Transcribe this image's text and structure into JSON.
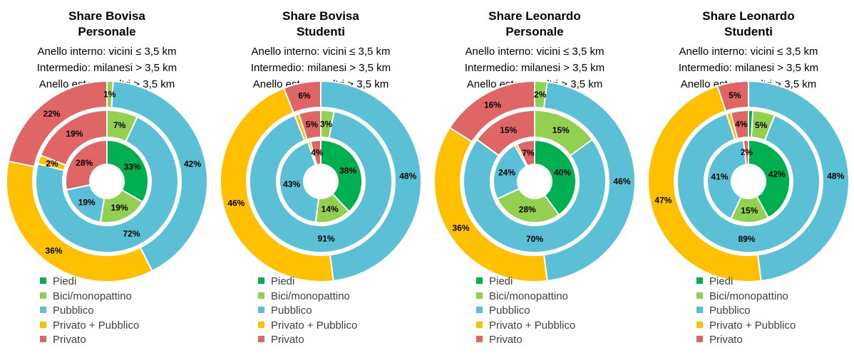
{
  "legend": [
    {
      "label": "Piedi",
      "color": "#00B050"
    },
    {
      "label": "Bici/monopattino",
      "color": "#92D050"
    },
    {
      "label": "Pubblico",
      "color": "#5BC0D5"
    },
    {
      "label": "Privato + Pubblico",
      "color": "#FFC000"
    },
    {
      "label": "Privato",
      "color": "#E06666"
    }
  ],
  "chart_data": [
    {
      "type": "donut",
      "title_line1": "Share Bovisa",
      "title_line2": "Personale",
      "subtitle_lines": [
        "Anello interno: vicini ≤ 3,5 km",
        "Intermedio: milanesi > 3,5 km",
        "Anello esterno: altri > 3,5 km"
      ],
      "categories": [
        "Piedi",
        "Bici/monopattino",
        "Pubblico",
        "Privato + Pubblico",
        "Privato"
      ],
      "series": [
        {
          "values": [
            33,
            19,
            19,
            0,
            28
          ],
          "labels": [
            "33%",
            "19%",
            "19%",
            "",
            "28%"
          ]
        },
        {
          "values": [
            0,
            7,
            72,
            2,
            19
          ],
          "labels": [
            "",
            "7%",
            "72%",
            "2%",
            "19%"
          ]
        },
        {
          "values": [
            0,
            1,
            42,
            36,
            22
          ],
          "labels": [
            "",
            "1%",
            "42%",
            "36%",
            "22%"
          ]
        }
      ]
    },
    {
      "type": "donut",
      "title_line1": "Share Bovisa",
      "title_line2": "Studenti",
      "subtitle_lines": [
        "Anello interno: vicini ≤ 3,5 km",
        "Intermedio: milanesi > 3,5 km",
        "Anello esterno: altri > 3,5 km"
      ],
      "categories": [
        "Piedi",
        "Bici/monopattino",
        "Pubblico",
        "Privato + Pubblico",
        "Privato"
      ],
      "series": [
        {
          "values": [
            38,
            14,
            43,
            1,
            4
          ],
          "labels": [
            "38%",
            "14%",
            "43%",
            "",
            "4%"
          ]
        },
        {
          "values": [
            0,
            3,
            91,
            1,
            5
          ],
          "labels": [
            "",
            "3%",
            "91%",
            "",
            "5%"
          ]
        },
        {
          "values": [
            0,
            0,
            48,
            46,
            6
          ],
          "labels": [
            "",
            "",
            "48%",
            "46%",
            "6%"
          ]
        }
      ]
    },
    {
      "type": "donut",
      "title_line1": "Share Leonardo",
      "title_line2": "Personale",
      "subtitle_lines": [
        "Anello interno: vicini ≤ 3,5 km",
        "Intermedio: milanesi > 3,5 km",
        "Anello esterno: altri > 3,5 km"
      ],
      "categories": [
        "Piedi",
        "Bici/monopattino",
        "Pubblico",
        "Privato + Pubblico",
        "Privato"
      ],
      "series": [
        {
          "values": [
            40,
            28,
            24,
            1,
            7
          ],
          "labels": [
            "40%",
            "28%",
            "24%",
            "",
            "7%"
          ]
        },
        {
          "values": [
            0,
            15,
            70,
            0,
            15
          ],
          "labels": [
            "",
            "15%",
            "70%",
            "",
            "15%"
          ]
        },
        {
          "values": [
            0,
            2,
            46,
            36,
            16
          ],
          "labels": [
            "",
            "2%",
            "46%",
            "36%",
            "16%"
          ]
        }
      ]
    },
    {
      "type": "donut",
      "title_line1": "Share Leonardo",
      "title_line2": "Studenti",
      "subtitle_lines": [
        "Anello interno: vicini ≤ 3,5 km",
        "Intermedio: milanesi > 3,5 km",
        "Anello esterno: altri > 3,5 km"
      ],
      "categories": [
        "Piedi",
        "Bici/monopattino",
        "Pubblico",
        "Privato + Pubblico",
        "Privato"
      ],
      "series": [
        {
          "values": [
            42,
            15,
            41,
            0,
            2
          ],
          "labels": [
            "42%",
            "15%",
            "41%",
            "",
            "2%"
          ]
        },
        {
          "values": [
            1,
            5,
            89,
            1,
            4
          ],
          "labels": [
            "",
            "5%",
            "89%",
            "",
            "4%"
          ]
        },
        {
          "values": [
            0,
            0,
            48,
            47,
            5
          ],
          "labels": [
            "",
            "",
            "48%",
            "47%",
            "5%"
          ]
        }
      ]
    }
  ]
}
